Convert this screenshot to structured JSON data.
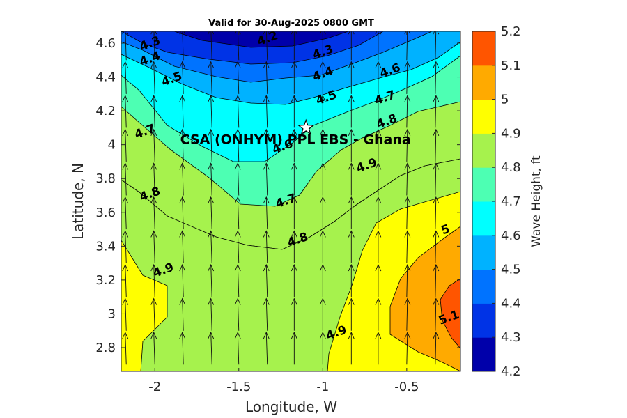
{
  "chart_data": {
    "type": "contour",
    "title": "Valid for 30-Aug-2025 0800 GMT",
    "xlabel": "Longitude, W",
    "ylabel": "Latitude, N",
    "colorbar_label": "Wave Height, ft",
    "xlim": [
      -2.2,
      -0.18
    ],
    "ylim": [
      2.66,
      4.67
    ],
    "x_ticks": [
      {
        "value": -2,
        "label": "-2"
      },
      {
        "value": -1.5,
        "label": "-1.5"
      },
      {
        "value": -1,
        "label": "-1"
      },
      {
        "value": -0.5,
        "label": "-0.5"
      }
    ],
    "y_ticks": [
      {
        "value": 2.8,
        "label": "2.8"
      },
      {
        "value": 3,
        "label": "3"
      },
      {
        "value": 3.2,
        "label": "3.2"
      },
      {
        "value": 3.4,
        "label": "3.4"
      },
      {
        "value": 3.6,
        "label": "3.6"
      },
      {
        "value": 3.8,
        "label": "3.8"
      },
      {
        "value": 4,
        "label": "4"
      },
      {
        "value": 4.2,
        "label": "4.2"
      },
      {
        "value": 4.4,
        "label": "4.4"
      },
      {
        "value": 4.6,
        "label": "4.6"
      }
    ],
    "levels": [
      4.2,
      4.3,
      4.4,
      4.5,
      4.6,
      4.7,
      4.8,
      4.9,
      5.0,
      5.1,
      5.2
    ],
    "colorbar_ticks": [
      "4.2",
      "4.3",
      "4.4",
      "4.5",
      "4.6",
      "4.7",
      "4.8",
      "4.9",
      "5",
      "5.1",
      "5.2"
    ],
    "colors": [
      "#0000AA",
      "#0033E6",
      "#0073FF",
      "#00B2FF",
      "#00FFFF",
      "#4DFFB3",
      "#A6F24D",
      "#FFFF00",
      "#FFAA00",
      "#FF5500"
    ],
    "contour_labels": [
      {
        "text": "4.2",
        "lon": -1.33,
        "lat": 4.63
      },
      {
        "text": "4.3",
        "lon": -2.03,
        "lat": 4.6
      },
      {
        "text": "4.3",
        "lon": -1.0,
        "lat": 4.55
      },
      {
        "text": "4.4",
        "lon": -2.03,
        "lat": 4.51
      },
      {
        "text": "4.4",
        "lon": -1.0,
        "lat": 4.42
      },
      {
        "text": "4.5",
        "lon": -1.9,
        "lat": 4.39
      },
      {
        "text": "4.5",
        "lon": -0.98,
        "lat": 4.28
      },
      {
        "text": "4.6",
        "lon": -0.6,
        "lat": 4.44
      },
      {
        "text": "4.6",
        "lon": -1.24,
        "lat": 3.99
      },
      {
        "text": "4.7",
        "lon": -2.06,
        "lat": 4.08
      },
      {
        "text": "4.7",
        "lon": -0.63,
        "lat": 4.28
      },
      {
        "text": "4.7",
        "lon": -1.22,
        "lat": 3.67
      },
      {
        "text": "4.8",
        "lon": -0.62,
        "lat": 4.14
      },
      {
        "text": "4.8",
        "lon": -2.03,
        "lat": 3.71
      },
      {
        "text": "4.8",
        "lon": -1.15,
        "lat": 3.44
      },
      {
        "text": "4.9",
        "lon": -0.74,
        "lat": 3.88
      },
      {
        "text": "4.9",
        "lon": -1.95,
        "lat": 3.26
      },
      {
        "text": "4.9",
        "lon": -0.92,
        "lat": 2.89
      },
      {
        "text": "5",
        "lon": -0.27,
        "lat": 3.5
      },
      {
        "text": "5.1",
        "lon": -0.25,
        "lat": 2.98
      }
    ],
    "site": {
      "label": "CSA (ONHYM) PPL EBS  - Ghana",
      "lon": -1.1,
      "lat": 4.1
    },
    "wind_vectors": {
      "direction": "north",
      "arrow_columns_lon": [
        -2.17,
        -2.0,
        -1.83,
        -1.66,
        -1.5,
        -1.33,
        -1.17,
        -1.0,
        -0.83,
        -0.67,
        -0.5,
        -0.33,
        -0.17
      ]
    }
  }
}
